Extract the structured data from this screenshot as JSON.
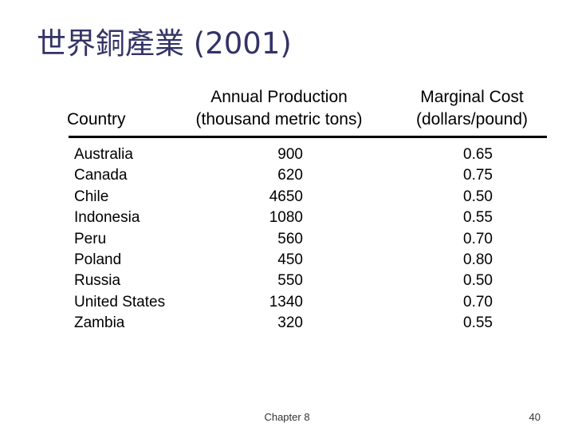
{
  "title": "世界銅產業 (2001)",
  "table": {
    "headers": {
      "country": "Country",
      "production_line1": "Annual Production",
      "production_line2": "(thousand metric tons)",
      "cost_line1": "Marginal Cost",
      "cost_line2": "(dollars/pound)"
    },
    "rows": [
      {
        "country": "Australia",
        "production": "900",
        "cost": "0.65"
      },
      {
        "country": "Canada",
        "production": "620",
        "cost": "0.75"
      },
      {
        "country": "Chile",
        "production": "4650",
        "cost": "0.50"
      },
      {
        "country": "Indonesia",
        "production": "1080",
        "cost": "0.55"
      },
      {
        "country": "Peru",
        "production": "560",
        "cost": "0.70"
      },
      {
        "country": "Poland",
        "production": "450",
        "cost": "0.80"
      },
      {
        "country": "Russia",
        "production": "550",
        "cost": "0.50"
      },
      {
        "country": "United States",
        "production": "1340",
        "cost": "0.70"
      },
      {
        "country": "Zambia",
        "production": "320",
        "cost": "0.55"
      }
    ]
  },
  "footer": {
    "chapter": "Chapter 8",
    "page": "40"
  }
}
